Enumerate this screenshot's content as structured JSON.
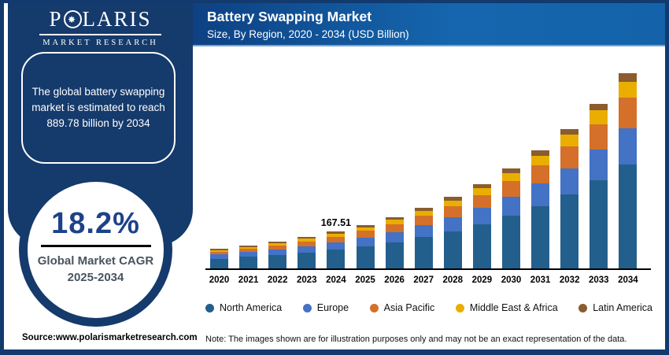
{
  "brand": {
    "logo_p": "P",
    "compass_icon": "✸",
    "logo_rest": "LARIS",
    "logo_sub": "MARKET RESEARCH"
  },
  "header": {
    "title": "Battery Swapping Market",
    "subtitle": "Size, By Region, 2020 - 2034 (USD Billion)"
  },
  "sidebar": {
    "callout": "The global battery swapping market is estimated to reach 889.78 billion by 2034",
    "cagr_value": "18.2%",
    "cagr_label_line1": "Global Market CAGR",
    "cagr_label_line2": "2025-2034"
  },
  "footer": {
    "source": "Source:www.polarismarketresearch.com",
    "note": "Note: The images shown are for illustration purposes only and may not be an exact representation of the data."
  },
  "chart_data": {
    "type": "bar",
    "stacked": true,
    "title": "Battery Swapping Market",
    "subtitle": "Size, By Region, 2020 - 2034 (USD Billion)",
    "unit": "USD Billion",
    "grid": false,
    "legend_position": "bottom",
    "ylim": [
      0,
      920
    ],
    "categories": [
      "2020",
      "2021",
      "2022",
      "2023",
      "2024",
      "2025",
      "2026",
      "2027",
      "2028",
      "2029",
      "2030",
      "2031",
      "2032",
      "2033",
      "2034"
    ],
    "series": [
      {
        "name": "North America",
        "color": "#235f8c",
        "values": [
          44.6,
          52.51,
          61.86,
          72.83,
          85.43,
          101.25,
          120.27,
          142.85,
          169.66,
          201.5,
          239.32,
          284.22,
          337.54,
          400.85,
          476.03
        ]
      },
      {
        "name": "Europe",
        "color": "#4472c4",
        "values": [
          18.73,
          21.76,
          25.29,
          29.37,
          33.98,
          39.73,
          46.54,
          54.52,
          63.85,
          74.79,
          87.59,
          102.57,
          120.09,
          140.61,
          164.61
        ]
      },
      {
        "name": "Asia Pacific",
        "color": "#d4702a",
        "values": [
          13.38,
          15.73,
          18.5,
          21.74,
          25.46,
          30.13,
          35.73,
          42.37,
          50.25,
          59.58,
          70.66,
          83.78,
          99.35,
          117.81,
          139.7
        ]
      },
      {
        "name": "Middle East & Africa",
        "color": "#eaae00",
        "values": [
          7.58,
          8.86,
          10.36,
          12.11,
          14.09,
          16.58,
          19.55,
          23.05,
          27.17,
          32.03,
          37.77,
          44.53,
          52.5,
          61.89,
          72.96
        ]
      },
      {
        "name": "Latin America",
        "color": "#8a5c2e",
        "values": [
          4.91,
          5.64,
          6.49,
          7.46,
          8.54,
          9.88,
          11.44,
          13.25,
          15.33,
          17.74,
          20.51,
          23.71,
          27.39,
          31.62,
          36.48
        ]
      }
    ],
    "totals": [
      89.2,
      104.5,
      122.5,
      143.51,
      167.51,
      197.57,
      233.53,
      276.04,
      326.26,
      385.64,
      455.85,
      538.81,
      636.87,
      752.78,
      889.78
    ],
    "annotations": [
      {
        "category": "2024",
        "text": "167.51"
      }
    ]
  }
}
